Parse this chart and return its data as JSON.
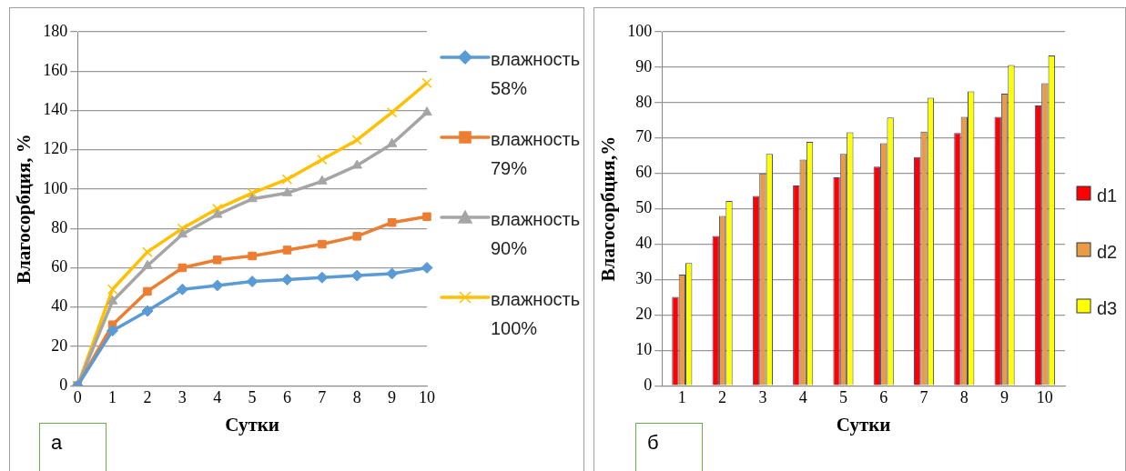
{
  "chart_data": [
    {
      "type": "line",
      "xlabel": "Сутки",
      "ylabel": "Влагосорбция, %",
      "categories": [
        "0",
        "1",
        "2",
        "3",
        "4",
        "5",
        "6",
        "7",
        "8",
        "9",
        "10"
      ],
      "series": [
        {
          "name": "влажность 58%",
          "color": "#5b9bd5",
          "marker": "diamond",
          "values": [
            0,
            28,
            38,
            49,
            51,
            53,
            54,
            55,
            56,
            57,
            60
          ]
        },
        {
          "name": "влажность 79%",
          "color": "#ed7d31",
          "marker": "square",
          "values": [
            0,
            31,
            48,
            60,
            64,
            66,
            69,
            72,
            76,
            83,
            86
          ]
        },
        {
          "name": "влажность 90%",
          "color": "#a5a5a5",
          "marker": "triangle",
          "values": [
            0,
            43,
            61,
            77,
            87,
            95,
            98,
            104,
            112,
            123,
            139
          ]
        },
        {
          "name": "влажность 100%",
          "color": "#ffc000",
          "marker": "cross",
          "values": [
            0,
            49,
            68,
            80,
            90,
            98,
            105,
            115,
            125,
            139,
            154
          ]
        }
      ],
      "ylim": [
        0,
        180
      ],
      "yticks": [
        0,
        20,
        40,
        60,
        80,
        100,
        120,
        140,
        160,
        180
      ],
      "grid": "y",
      "legend": "right",
      "annotations": [
        "а"
      ]
    },
    {
      "type": "bar",
      "xlabel": "Сутки",
      "ylabel": "Влагосорбция,%",
      "categories": [
        "1",
        "2",
        "3",
        "4",
        "5",
        "6",
        "7",
        "8",
        "9",
        "10"
      ],
      "series": [
        {
          "name": "d1",
          "color": "#ff0000",
          "values": [
            25.1,
            42.3,
            53.6,
            56.6,
            58.9,
            61.9,
            64.6,
            71.4,
            76,
            79.2
          ]
        },
        {
          "name": "d2",
          "color": "#e99b45",
          "values": [
            31.4,
            48,
            60,
            63.9,
            65.5,
            68.5,
            71.8,
            76,
            82.5,
            85.5
          ]
        },
        {
          "name": "d3",
          "color": "#ffff00",
          "values": [
            34.7,
            52.2,
            65.5,
            68.9,
            71.6,
            75.8,
            81.4,
            83.2,
            90.6,
            93.3
          ]
        }
      ],
      "ylim": [
        0,
        100
      ],
      "yticks": [
        0,
        10,
        20,
        30,
        40,
        50,
        60,
        70,
        80,
        90,
        100
      ],
      "grid": "y",
      "legend": "right",
      "annotations": [
        "б"
      ]
    }
  ]
}
